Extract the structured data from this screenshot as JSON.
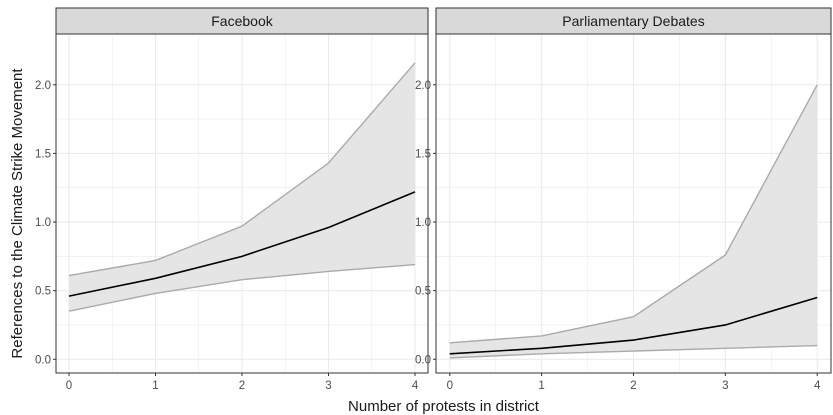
{
  "chart_data": {
    "type": "line",
    "xlabel": "Number of protests in district",
    "ylabel": "References to the Climate Strike Movement",
    "x_ticks": [
      "0",
      "1",
      "2",
      "3",
      "4"
    ],
    "y_ticks": [
      "0.0",
      "0.5",
      "1.0",
      "1.5",
      "2.0"
    ],
    "xlim": [
      -0.15,
      4.15
    ],
    "ylim": [
      -0.1,
      2.37
    ],
    "grid": true,
    "colors": {
      "line": "#000000",
      "ribbon_fill": "#e5e5e5",
      "ribbon_edge": "#aaaaaa",
      "strip_fill": "#d9d9d9",
      "grid": "#ebebeb"
    },
    "panels": [
      {
        "title": "Facebook",
        "x": [
          0,
          1,
          2,
          3,
          4
        ],
        "estimate": [
          0.46,
          0.59,
          0.75,
          0.96,
          1.22
        ],
        "lower": [
          0.35,
          0.48,
          0.58,
          0.64,
          0.69
        ],
        "upper": [
          0.61,
          0.72,
          0.97,
          1.43,
          2.16
        ]
      },
      {
        "title": "Parliamentary Debates",
        "x": [
          0,
          1,
          2,
          3,
          4
        ],
        "estimate": [
          0.04,
          0.08,
          0.14,
          0.25,
          0.45
        ],
        "lower": [
          0.01,
          0.04,
          0.06,
          0.08,
          0.1
        ],
        "upper": [
          0.12,
          0.17,
          0.31,
          0.76,
          2.0
        ]
      }
    ]
  }
}
